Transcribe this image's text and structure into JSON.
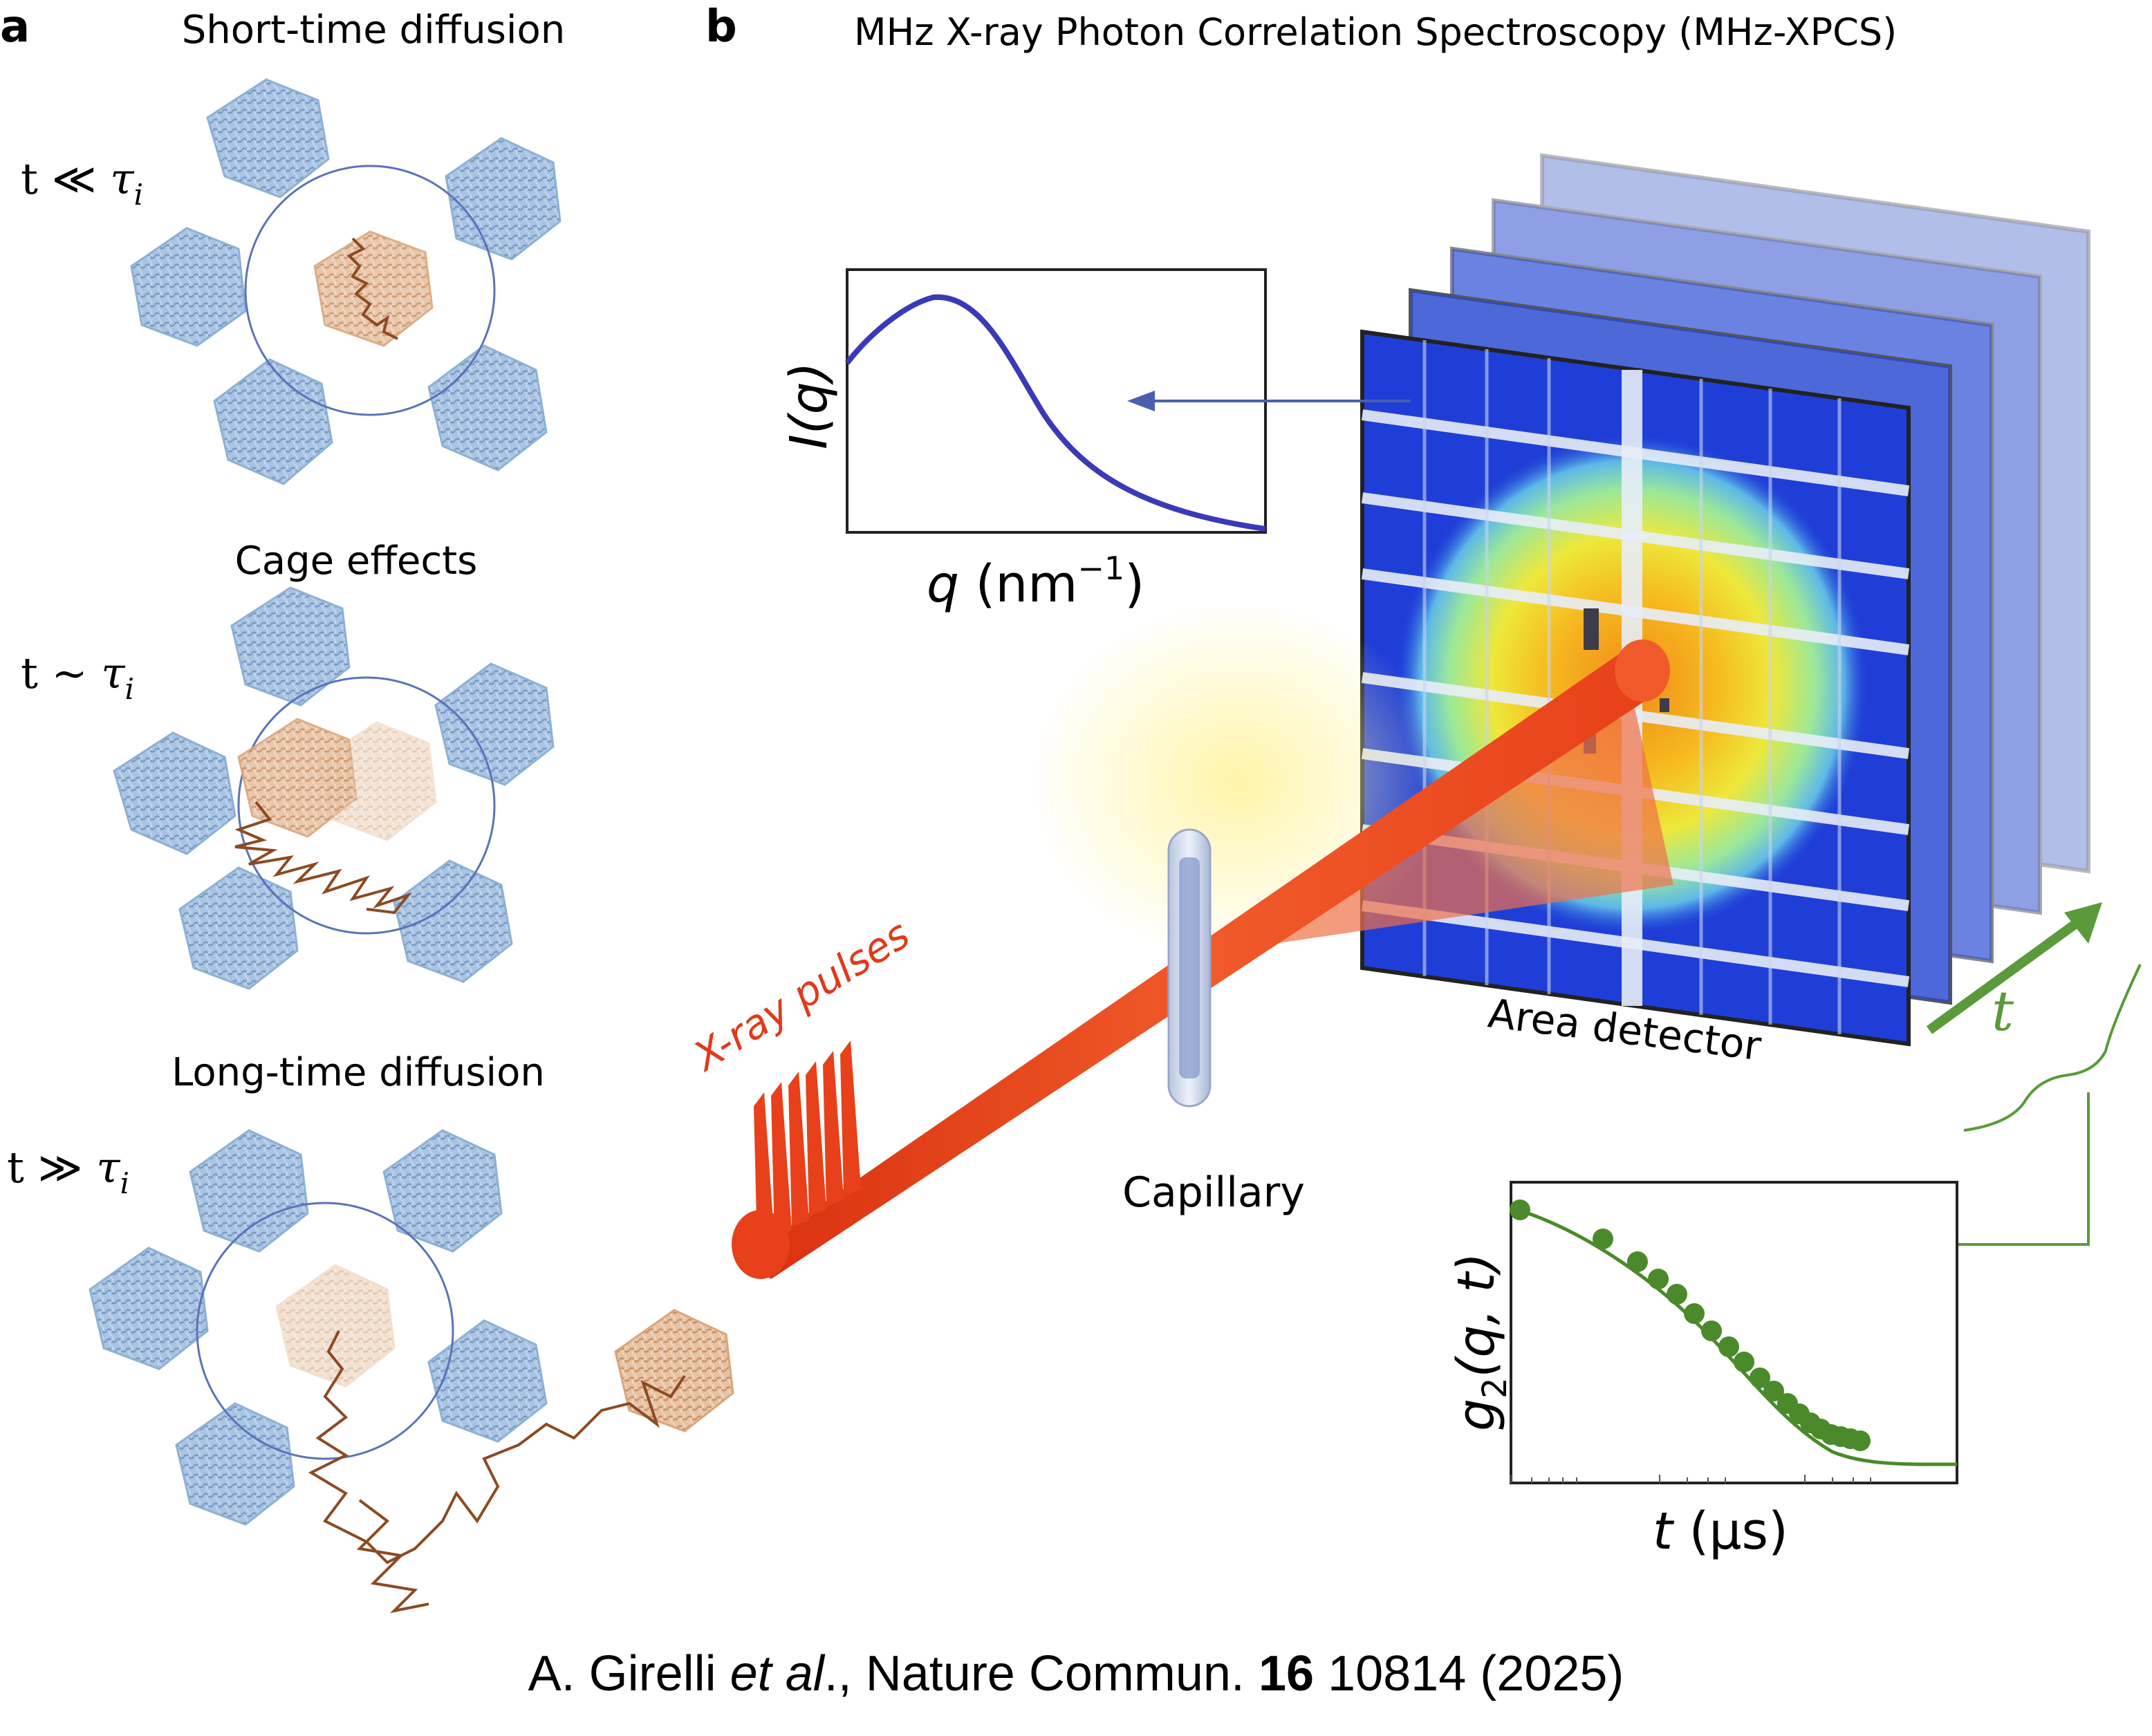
{
  "panel_a": {
    "letter": "a",
    "title_short": "Short-time diffusion",
    "title_cage": "Cage effects",
    "title_long": "Long-time diffusion",
    "regimes": [
      {
        "relation_prefix": "t ≪ ",
        "tau": "τ",
        "sub": "i"
      },
      {
        "relation_prefix": "t ~ ",
        "tau": "τ",
        "sub": "i"
      },
      {
        "relation_prefix": "t ≫ ",
        "tau": "τ",
        "sub": "i"
      }
    ]
  },
  "panel_b": {
    "letter": "b",
    "title": "MHz X-ray Photon Correlation Spectroscopy (MHz-XPCS)",
    "xray_label": "X-ray pulses",
    "capillary_label": "Capillary",
    "detector_label": "Area detector",
    "time_axis_label": "t",
    "iq_plot": {
      "ylabel_main": "I(q)",
      "xlabel_var": "q",
      "xlabel_unit": " (nm",
      "xlabel_exp": "−1",
      "xlabel_close": ")"
    },
    "g2_plot": {
      "ylabel_g": "g",
      "ylabel_sub": "2",
      "ylabel_args": "(q, t)",
      "xlabel_var": "t",
      "xlabel_unit": " (µs)"
    }
  },
  "citation": {
    "authors": "A. Girelli ",
    "etal": "et al",
    "journal": "., Nature Commun. ",
    "volume": "16",
    "rest": " 10814 (2025)"
  },
  "colors": {
    "protein_blue": "#8fb2d6",
    "protein_orange": "#d9a57c",
    "trajectory": "#8b4a24",
    "circle": "#5a73b8",
    "beam": "#e8401a",
    "iq_curve": "#3a3ab8",
    "g2_green": "#4a8a2a",
    "arrow_blue": "#4a5fb0",
    "arrow_green": "#5a9a3a"
  }
}
